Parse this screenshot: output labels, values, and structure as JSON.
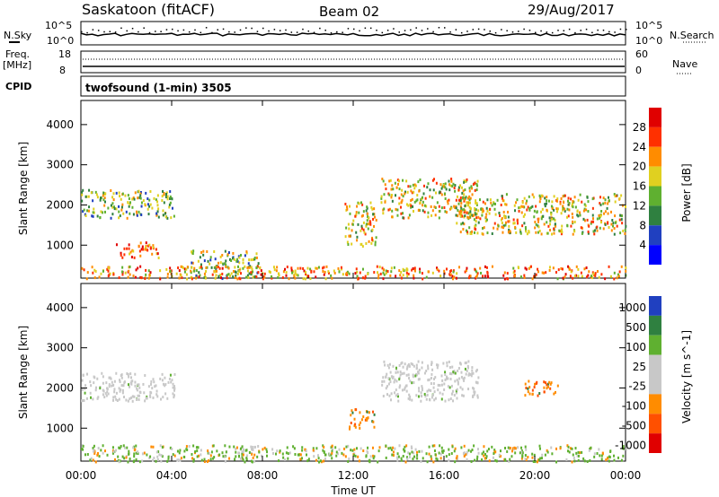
{
  "header": {
    "station": "Saskatoon (fitACF)",
    "beam": "Beam 02",
    "date": "29/Aug/2017"
  },
  "info_panels": {
    "nsky_label": "N.Sky",
    "nsky_ticks": [
      "10^5",
      "10^0"
    ],
    "nsearch_label": "N.Search",
    "nsearch_ticks": [
      "10^5",
      "10^0"
    ],
    "freq_label_1": "Freq.",
    "freq_label_2": "[MHz]",
    "freq_ticks": [
      "18",
      "8"
    ],
    "nave_label": "Nave",
    "nave_ticks": [
      "60",
      "0"
    ],
    "cpid_label": "CPID",
    "cpid_text": "twofsound (1-min) 3505"
  },
  "colors": {
    "power_scale": [
      "#0000ff",
      "#2040c0",
      "#2f8040",
      "#5fb030",
      "#e0d020",
      "#ff8c00",
      "#ff3000",
      "#e00000"
    ],
    "velocity_scale": [
      "#2040c0",
      "#2f8040",
      "#5fb030",
      "#c8c8c8",
      "#c8c8c8",
      "#ff8c00",
      "#ff5000",
      "#e00000"
    ],
    "ground_scatter": "#c8c8c8"
  },
  "chart_data": [
    {
      "type": "heatmap",
      "name": "power",
      "ylabel": "Slant Range [km]",
      "xlabel": "Time UT",
      "x_ticks": [
        "00:00",
        "04:00",
        "08:00",
        "12:00",
        "16:00",
        "20:00",
        "00:00"
      ],
      "xlim_hours": [
        0,
        24
      ],
      "y_ticks": [
        1000,
        2000,
        3000,
        4000
      ],
      "ylim_km": [
        180,
        4600
      ],
      "colorbar_label": "Power [dB]",
      "colorbar_ticks": [
        4,
        8,
        12,
        16,
        20,
        24,
        28
      ],
      "colorbar_range": [
        0,
        32
      ],
      "echo_regions": [
        {
          "t": [
            0.0,
            4.1
          ],
          "r": [
            1700,
            2400
          ],
          "level": 3
        },
        {
          "t": [
            1.5,
            3.4
          ],
          "r": [
            700,
            1100
          ],
          "level": 6
        },
        {
          "t": [
            4.8,
            7.8
          ],
          "r": [
            200,
            900
          ],
          "level": 3
        },
        {
          "t": [
            11.6,
            13.0
          ],
          "r": [
            1000,
            2100
          ],
          "level": 4
        },
        {
          "t": [
            13.2,
            17.5
          ],
          "r": [
            1700,
            2700
          ],
          "level": 4
        },
        {
          "t": [
            16.5,
            24.0
          ],
          "r": [
            1300,
            2300
          ],
          "level": 4
        },
        {
          "t": [
            0.0,
            24.0
          ],
          "r": [
            190,
            500
          ],
          "level": 5
        }
      ]
    },
    {
      "type": "heatmap",
      "name": "velocity",
      "ylabel": "Slant Range [km]",
      "xlabel": "Time UT",
      "x_ticks": [
        "00:00",
        "04:00",
        "08:00",
        "12:00",
        "16:00",
        "20:00",
        "00:00"
      ],
      "xlim_hours": [
        0,
        24
      ],
      "y_ticks": [
        1000,
        2000,
        3000,
        4000
      ],
      "ylim_km": [
        180,
        4600
      ],
      "colorbar_label": "Velocity [m s^-1]",
      "colorbar_ticks": [
        "1000",
        "500",
        "100",
        "25",
        "-25",
        "-100",
        "-500",
        "-1000"
      ],
      "echo_regions": [
        {
          "t": [
            0.0,
            4.1
          ],
          "r": [
            1700,
            2400
          ],
          "kind": "ground"
        },
        {
          "t": [
            11.8,
            12.9
          ],
          "r": [
            1000,
            1500
          ],
          "kind": "away"
        },
        {
          "t": [
            13.2,
            17.5
          ],
          "r": [
            1700,
            2700
          ],
          "kind": "ground"
        },
        {
          "t": [
            19.5,
            21.0
          ],
          "r": [
            1800,
            2200
          ],
          "kind": "away"
        },
        {
          "t": [
            0.0,
            24.0
          ],
          "r": [
            190,
            600
          ],
          "kind": "toward"
        }
      ]
    }
  ],
  "time_label": "Time UT"
}
